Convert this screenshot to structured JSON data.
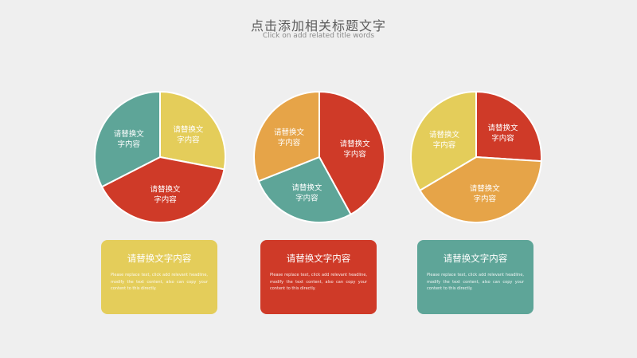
{
  "header": {
    "title": "点击添加相关标题文字",
    "subtitle": "Click on add related title words"
  },
  "colors": {
    "yellow": "#e4cd5a",
    "red": "#cf3a28",
    "teal": "#5ea598",
    "orange": "#e6a448"
  },
  "pies": [
    {
      "slices": [
        {
          "label": "请替换文字内容",
          "value": 0.28,
          "color": "#e4cd5a"
        },
        {
          "label": "请替换文字内容",
          "value": 0.395,
          "color": "#cf3a28"
        },
        {
          "label": "请替换文字内容",
          "value": 0.325,
          "color": "#5ea598"
        }
      ]
    },
    {
      "slices": [
        {
          "label": "请替换文字内容",
          "value": 0.42,
          "color": "#cf3a28"
        },
        {
          "label": "请替换文字内容",
          "value": 0.27,
          "color": "#5ea598"
        },
        {
          "label": "请替换文字内容",
          "value": 0.31,
          "color": "#e6a448"
        }
      ]
    },
    {
      "slices": [
        {
          "label": "请替换文字内容",
          "value": 0.26,
          "color": "#cf3a28"
        },
        {
          "label": "请替换文字内容",
          "value": 0.405,
          "color": "#e6a448"
        },
        {
          "label": "请替换文字内容",
          "value": 0.335,
          "color": "#e4cd5a"
        }
      ]
    }
  ],
  "cards": [
    {
      "title": "请替换文字内容",
      "body": "Please replace text, click add relevant headline, modify the text content, also can copy your content to this directly.",
      "color": "#e4cd5a"
    },
    {
      "title": "请替换文字内容",
      "body": "Please replace text, click add relevant headline, modify the text content, also can copy your content to this directly.",
      "color": "#cf3a28"
    },
    {
      "title": "请替换文字内容",
      "body": "Please replace text, click add relevant headline, modify the text content, also can copy your content to this directly.",
      "color": "#5ea598"
    }
  ]
}
